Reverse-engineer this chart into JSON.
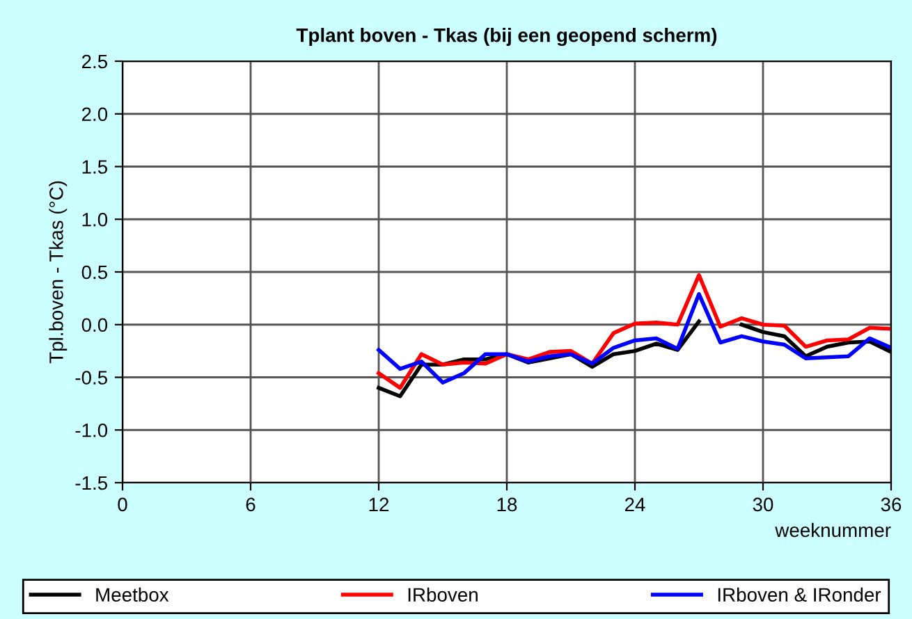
{
  "chart_data": {
    "type": "line",
    "title": "Tplant boven - Tkas (bij een geopend scherm)",
    "xlabel": "weeknummer",
    "ylabel": "Tpl.boven - Tkas (°C)",
    "x": [
      12,
      13,
      14,
      15,
      16,
      17,
      18,
      19,
      20,
      21,
      22,
      23,
      24,
      25,
      26,
      27,
      28,
      29,
      30,
      31,
      32,
      33,
      34,
      35,
      36
    ],
    "series": [
      {
        "name": "Meetbox",
        "color": "#000000",
        "values": [
          -0.6,
          -0.68,
          -0.38,
          -0.38,
          -0.33,
          -0.33,
          -0.28,
          -0.36,
          -0.32,
          -0.28,
          -0.4,
          -0.28,
          -0.25,
          -0.18,
          -0.24,
          0.03,
          null,
          0.0,
          -0.07,
          -0.11,
          -0.3,
          -0.21,
          -0.17,
          -0.16,
          -0.26
        ]
      },
      {
        "name": "IRboven",
        "color": "#ff0000",
        "values": [
          -0.46,
          -0.6,
          -0.28,
          -0.38,
          -0.36,
          -0.37,
          -0.28,
          -0.33,
          -0.26,
          -0.25,
          -0.37,
          -0.08,
          0.01,
          0.02,
          0.0,
          0.47,
          -0.02,
          0.06,
          0.0,
          -0.01,
          -0.21,
          -0.15,
          -0.14,
          -0.03,
          -0.04
        ]
      },
      {
        "name": "IRboven & IRonder",
        "color": "#0000ff",
        "values": [
          -0.24,
          -0.42,
          -0.35,
          -0.55,
          -0.46,
          -0.28,
          -0.28,
          -0.35,
          -0.3,
          -0.28,
          -0.37,
          -0.22,
          -0.15,
          -0.13,
          -0.23,
          0.29,
          -0.17,
          -0.11,
          -0.16,
          -0.19,
          -0.32,
          -0.31,
          -0.3,
          -0.13,
          -0.22
        ]
      }
    ],
    "xlim": [
      0,
      36
    ],
    "xticks": [
      0,
      6,
      12,
      18,
      24,
      30,
      36
    ],
    "ylim": [
      -1.5,
      2.5
    ],
    "yticks": [
      -1.5,
      {
        "value": -1,
        "label": "-1.0"
      },
      -0.5,
      {
        "value": 0,
        "label": "0.0"
      },
      0.5,
      {
        "value": 1,
        "label": "1.0"
      },
      1.5,
      {
        "value": 2,
        "label": "2.0"
      },
      2.5
    ],
    "grid": true,
    "legend": "bottom",
    "marker": "none",
    "line_style": "solid"
  }
}
